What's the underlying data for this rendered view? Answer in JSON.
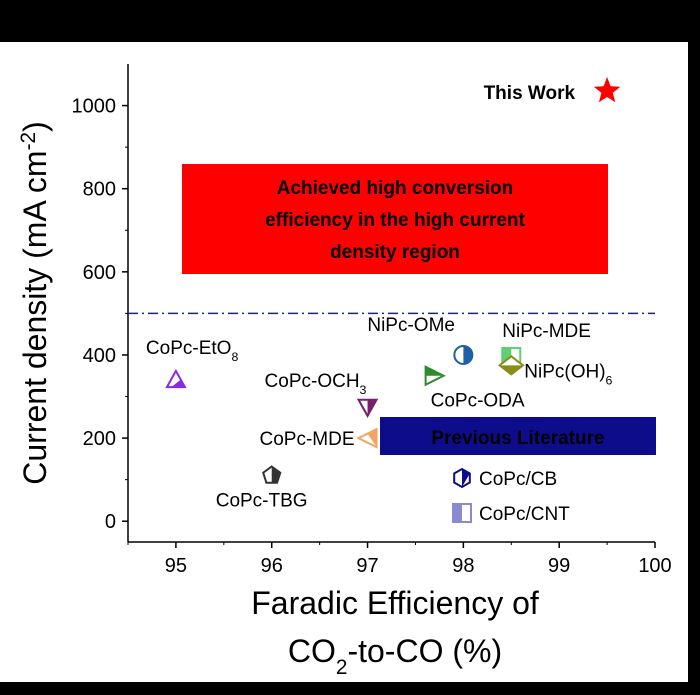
{
  "chart_data": {
    "type": "scatter",
    "xlabel": "Faradic Efficiency of CO2-to-CO (%)",
    "ylabel": "Current density (mA cm-2)",
    "xlim": [
      94.5,
      100
    ],
    "ylim": [
      -50,
      1100
    ],
    "xticks": [
      95,
      96,
      97,
      98,
      99,
      100
    ],
    "yticks": [
      0,
      200,
      400,
      600,
      800,
      1000
    ],
    "grid": false,
    "threshold_line": {
      "y": 500,
      "style": "dash-dot",
      "color": "#1a237e"
    },
    "banner_text": [
      "Achieved high conversion",
      "efficiency in the high current",
      "density region"
    ],
    "banner_color": "#ff0000",
    "previous_literature_label": "Previous Literature",
    "previous_literature_color": "#0d0d8c",
    "this_work": {
      "name": "This Work",
      "x": 99.5,
      "y": 1035,
      "marker": "star",
      "color": "#ff0000"
    },
    "points": [
      {
        "name": "CoPc-EtO8",
        "x": 95.0,
        "y": 340,
        "marker": "triangle-up",
        "color": "#8a2be2"
      },
      {
        "name": "CoPc-OCH3",
        "x": 97.0,
        "y": 275,
        "marker": "triangle-down",
        "color": "#7b1f6a"
      },
      {
        "name": "CoPc-MDE",
        "x": 97.0,
        "y": 200,
        "marker": "triangle-left",
        "color": "#f4a460"
      },
      {
        "name": "CoPc-TBG",
        "x": 96.0,
        "y": 110,
        "marker": "pentagon",
        "color": "#333333"
      },
      {
        "name": "NiPc-OMe",
        "x": 98.0,
        "y": 400,
        "marker": "circle-half",
        "color": "#1f5fa8"
      },
      {
        "name": "CoPc-ODA",
        "x": 97.7,
        "y": 350,
        "marker": "triangle-right",
        "color": "#2e8b2e"
      },
      {
        "name": "NiPc-MDE",
        "x": 98.5,
        "y": 395,
        "marker": "square-half",
        "color": "#5fcf6f"
      },
      {
        "name": "NiPc(OH)6",
        "x": 98.5,
        "y": 375,
        "marker": "diamond-half",
        "color": "#8b8b1a"
      }
    ],
    "legend": [
      {
        "name": "CoPc/CB",
        "marker": "hexagon-half",
        "color": "#0d0d8c"
      },
      {
        "name": "CoPc/CNT",
        "marker": "square-half",
        "color": "#8a8ad0"
      }
    ]
  }
}
